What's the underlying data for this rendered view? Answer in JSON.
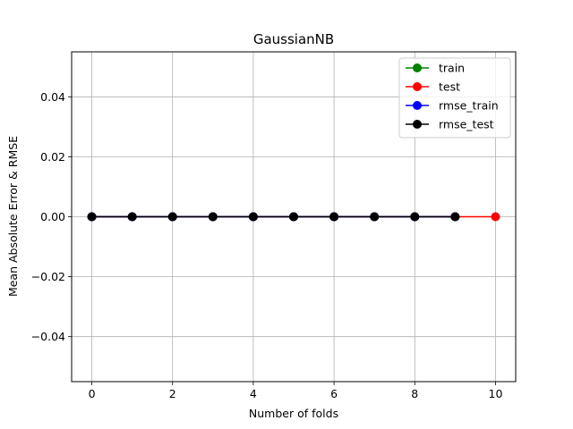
{
  "chart_data": {
    "type": "line",
    "title": "GaussianNB",
    "xlabel": "Number of folds",
    "ylabel": "Mean Absolute Error & RMSE",
    "xlim": [
      -0.5,
      10.5
    ],
    "ylim": [
      -0.055,
      0.055
    ],
    "xticks": [
      0,
      2,
      4,
      6,
      8,
      10
    ],
    "xtick_labels": [
      "0",
      "2",
      "4",
      "6",
      "8",
      "10"
    ],
    "yticks": [
      -0.04,
      -0.02,
      0.0,
      0.02,
      0.04
    ],
    "ytick_labels": [
      "−0.04",
      "−0.02",
      "0.00",
      "0.02",
      "0.04"
    ],
    "grid": true,
    "legend_position": "top-right",
    "series": [
      {
        "name": "train",
        "color": "#008000",
        "marker": "circle",
        "x": [
          0,
          1,
          2,
          3,
          4,
          5,
          6,
          7,
          8,
          9
        ],
        "y": [
          0,
          0,
          0,
          0,
          0,
          0,
          0,
          0,
          0,
          0
        ]
      },
      {
        "name": "test",
        "color": "#ff0000",
        "marker": "circle",
        "x": [
          0,
          1,
          2,
          3,
          4,
          5,
          6,
          7,
          8,
          9,
          10
        ],
        "y": [
          0,
          0,
          0,
          0,
          0,
          0,
          0,
          0,
          0,
          0,
          0
        ]
      },
      {
        "name": "rmse_train",
        "color": "#0000ff",
        "marker": "circle",
        "x": [
          0,
          1,
          2,
          3,
          4,
          5,
          6,
          7,
          8,
          9
        ],
        "y": [
          0,
          0,
          0,
          0,
          0,
          0,
          0,
          0,
          0,
          0
        ]
      },
      {
        "name": "rmse_test",
        "color": "#000000",
        "marker": "circle",
        "x": [
          0,
          1,
          2,
          3,
          4,
          5,
          6,
          7,
          8,
          9
        ],
        "y": [
          0,
          0,
          0,
          0,
          0,
          0,
          0,
          0,
          0,
          0
        ]
      }
    ]
  }
}
